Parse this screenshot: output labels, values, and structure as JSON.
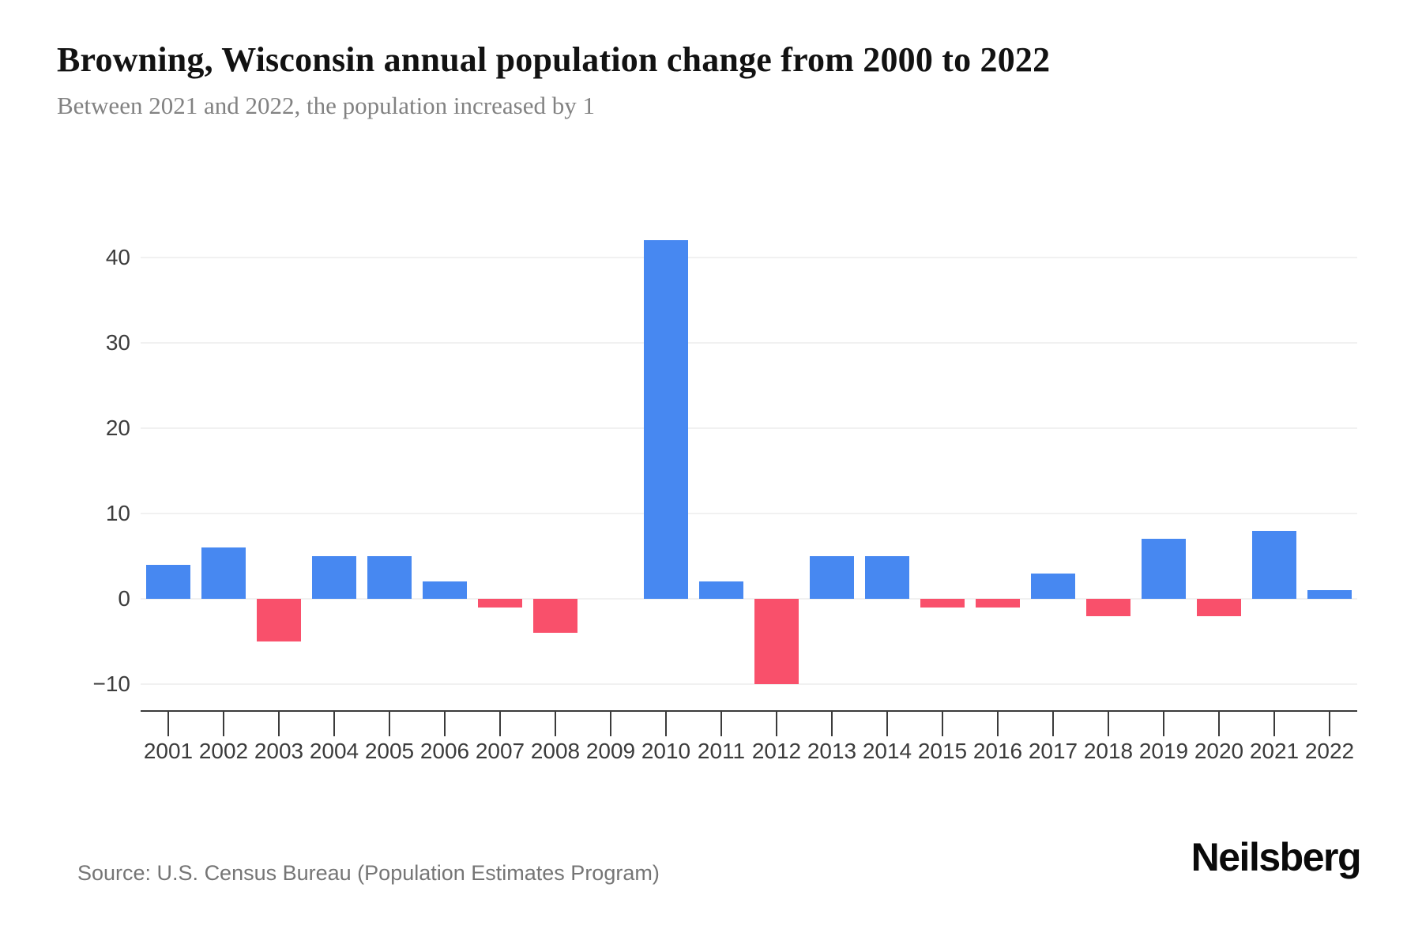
{
  "header": {
    "title": "Browning, Wisconsin annual population change from 2000 to 2022",
    "subtitle": "Between 2021 and 2022, the population increased by 1"
  },
  "chart_data": {
    "type": "bar",
    "title": "Browning, Wisconsin annual population change from 2000 to 2022",
    "subtitle": "Between 2021 and 2022, the population increased by 1",
    "categories": [
      "2001",
      "2002",
      "2003",
      "2004",
      "2005",
      "2006",
      "2007",
      "2008",
      "2009",
      "2010",
      "2011",
      "2012",
      "2013",
      "2014",
      "2015",
      "2016",
      "2017",
      "2018",
      "2019",
      "2020",
      "2021",
      "2022"
    ],
    "values": [
      4,
      6,
      -5,
      5,
      5,
      2,
      -1,
      -4,
      0,
      42,
      2,
      -10,
      5,
      5,
      -1,
      -1,
      3,
      -2,
      7,
      -2,
      8,
      1
    ],
    "xlabel": "",
    "ylabel": "",
    "yticks": [
      40,
      30,
      20,
      10,
      0,
      -10
    ],
    "ylim": [
      -13,
      45
    ],
    "grid": true,
    "legend": false,
    "colors": {
      "positive": "#4788f1",
      "negative": "#f9506b"
    }
  },
  "footer": {
    "source": "Source: U.S. Census Bureau (Population Estimates Program)",
    "brand": "Neilsberg"
  }
}
